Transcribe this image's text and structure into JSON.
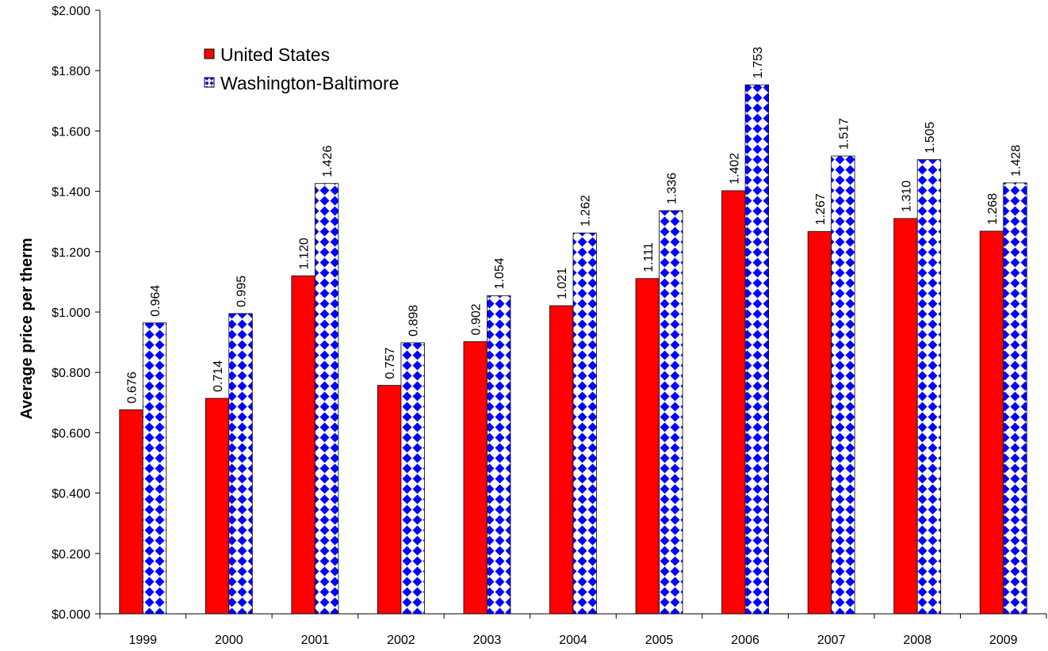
{
  "chart_data": {
    "type": "bar",
    "title": "",
    "xlabel": "",
    "ylabel": "Average price per therm",
    "categories": [
      "1999",
      "2000",
      "2001",
      "2002",
      "2003",
      "2004",
      "2005",
      "2006",
      "2007",
      "2008",
      "2009"
    ],
    "series": [
      {
        "name": "United States",
        "color": "#ff0000",
        "values": [
          0.676,
          0.714,
          1.12,
          0.757,
          0.902,
          1.021,
          1.111,
          1.402,
          1.267,
          1.31,
          1.268
        ],
        "labels": [
          "0.676",
          "0.714",
          "1.120",
          "0.757",
          "0.902",
          "1.021",
          "1.111",
          "1.402",
          "1.267",
          "1.310",
          "1.268"
        ]
      },
      {
        "name": "Washington-Baltimore",
        "color": "#0000ff",
        "pattern": "blue-diamond-checker",
        "values": [
          0.964,
          0.995,
          1.426,
          0.898,
          1.054,
          1.262,
          1.336,
          1.753,
          1.517,
          1.505,
          1.428
        ],
        "labels": [
          "0.964",
          "0.995",
          "1.426",
          "0.898",
          "1.054",
          "1.262",
          "1.336",
          "1.753",
          "1.517",
          "1.505",
          "1.428"
        ]
      }
    ],
    "ylim": [
      0,
      2.0
    ],
    "yticks": [
      0,
      0.2,
      0.4,
      0.6,
      0.8,
      1.0,
      1.2,
      1.4,
      1.6,
      1.8,
      2.0
    ],
    "ytick_labels": [
      "$0.000",
      "$0.200",
      "$0.400",
      "$0.600",
      "$0.800",
      "$1.000",
      "$1.200",
      "$1.400",
      "$1.600",
      "$1.800",
      "$2.000"
    ],
    "grid": false,
    "legend_position": "top-left"
  }
}
